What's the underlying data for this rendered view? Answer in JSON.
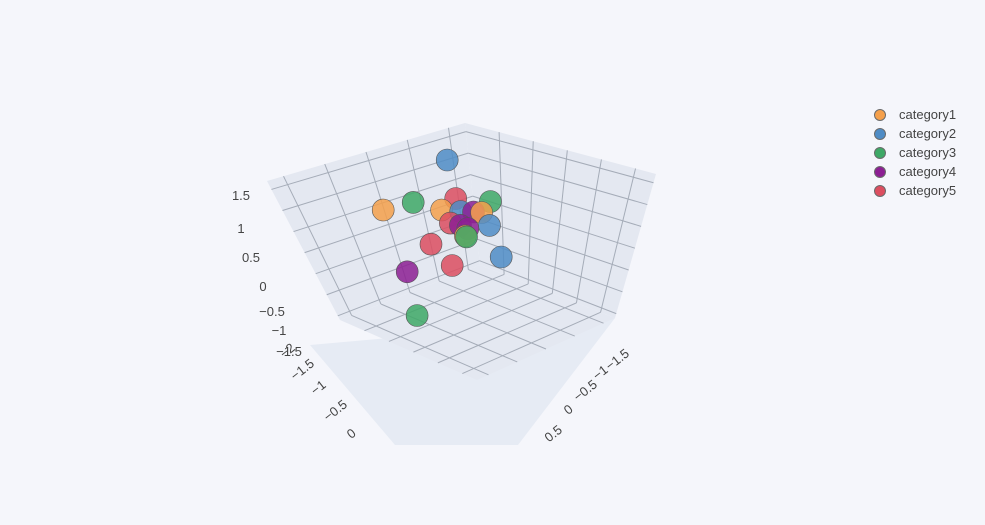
{
  "chart_data": {
    "type": "scatter",
    "title": "",
    "legend_position": "top-right",
    "grid": true,
    "axes": {
      "x": {
        "ticks": [
          0,
          -0.5,
          -1,
          -1.5,
          -2
        ]
      },
      "y": {
        "ticks": [
          0.5,
          0,
          -0.5,
          -1,
          -1.5
        ]
      },
      "z": {
        "ticks": [
          1.5,
          1,
          0.5,
          0,
          -0.5,
          -1,
          -1.5
        ]
      }
    },
    "series": [
      {
        "name": "category1",
        "color": "#f5a04b",
        "points": [
          {
            "x": -0.55,
            "y": 0.25,
            "z": 1.6
          },
          {
            "x": -1.05,
            "y": -1.05,
            "z": 0.75
          },
          {
            "x": -0.55,
            "y": -1.35,
            "z": 0.9
          },
          {
            "x": -1.65,
            "y": -1.5,
            "z": -0.4
          }
        ]
      },
      {
        "name": "category2",
        "color": "#4f8cc5",
        "points": [
          {
            "x": -1.4,
            "y": -1.3,
            "z": 1.6
          },
          {
            "x": -1.3,
            "y": -0.6,
            "z": 0.45
          },
          {
            "x": -1.1,
            "y": -0.8,
            "z": 0.8
          },
          {
            "x": -1.6,
            "y": -0.8,
            "z": -0.55
          }
        ]
      },
      {
        "name": "category3",
        "color": "#3ea866",
        "points": [
          {
            "x": -1.45,
            "y": -0.75,
            "z": 0.85
          },
          {
            "x": -0.9,
            "y": -1.3,
            "z": 0.9
          },
          {
            "x": -1.55,
            "y": -1.35,
            "z": -0.3
          },
          {
            "x": -0.35,
            "y": -1.0,
            "z": -1.3
          }
        ]
      },
      {
        "name": "category4",
        "color": "#8c1f93",
        "points": [
          {
            "x": -0.05,
            "y": -0.5,
            "z": 0.15
          },
          {
            "x": -1.05,
            "y": -0.65,
            "z": 0.5
          },
          {
            "x": -1.3,
            "y": -0.85,
            "z": 0.65
          },
          {
            "x": -1.75,
            "y": -1.7,
            "z": -0.3
          }
        ]
      },
      {
        "name": "category5",
        "color": "#dc4e60",
        "points": [
          {
            "x": -0.8,
            "y": -0.6,
            "z": 0.8
          },
          {
            "x": -0.65,
            "y": -0.8,
            "z": 0.3
          },
          {
            "x": -1.55,
            "y": -1.45,
            "z": 0.55
          },
          {
            "x": -1.1,
            "y": -1.1,
            "z": -0.6
          }
        ]
      }
    ]
  }
}
